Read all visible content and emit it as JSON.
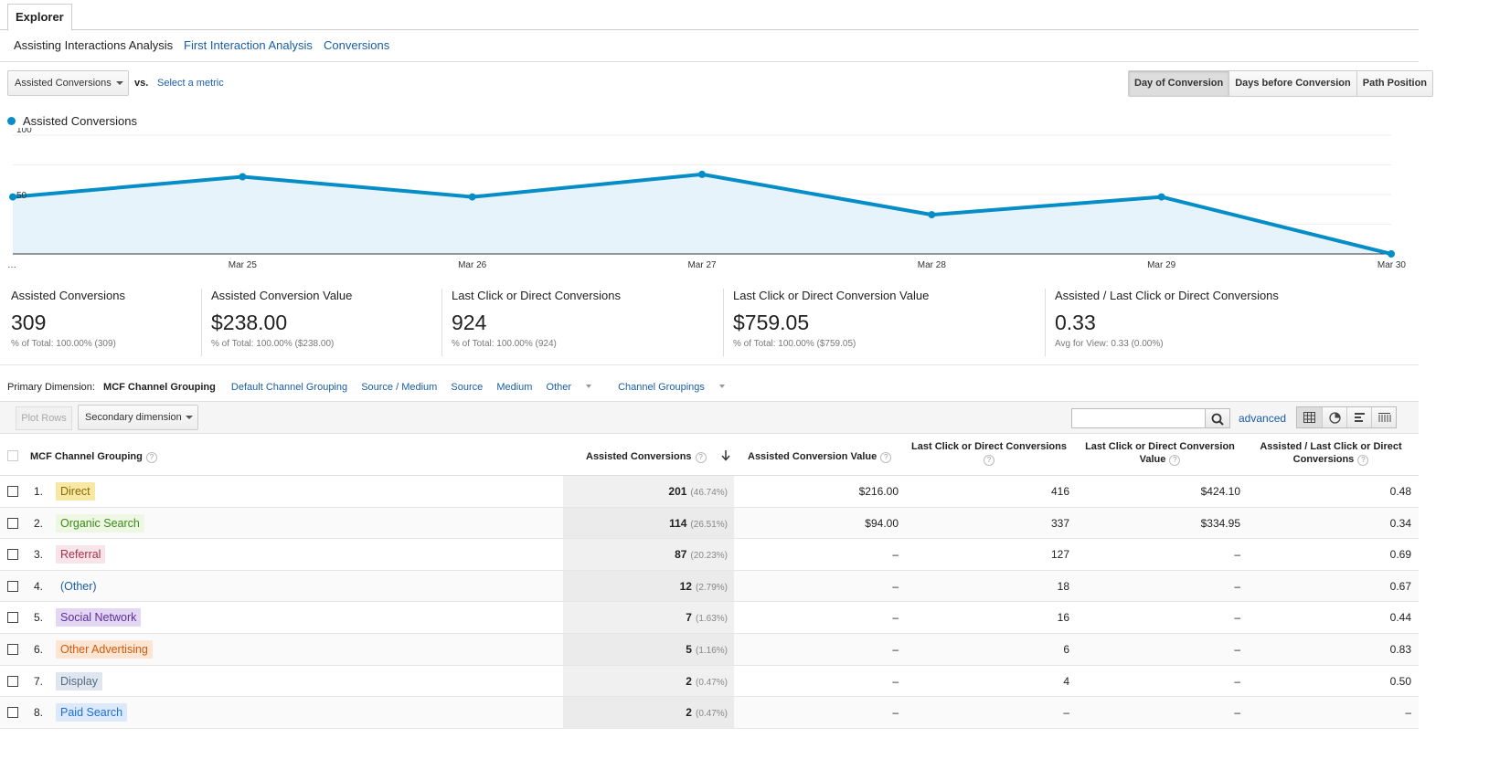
{
  "tabs": {
    "explorer": "Explorer"
  },
  "subtabs": {
    "assisting": "Assisting Interactions Analysis",
    "first": "First Interaction Analysis",
    "conversions": "Conversions"
  },
  "metric": {
    "selected": "Assisted Conversions",
    "vs": "vs.",
    "select_metric": "Select a metric"
  },
  "segments": {
    "day": "Day of Conversion",
    "days_before": "Days before Conversion",
    "path": "Path Position"
  },
  "legend": "Assisted Conversions",
  "chart_data": {
    "type": "area",
    "title": "",
    "series": [
      {
        "name": "Assisted Conversions",
        "values": [
          48,
          65,
          48,
          67,
          33,
          48,
          0
        ]
      }
    ],
    "x": [
      "…",
      "Mar 25",
      "Mar 26",
      "Mar 27",
      "Mar 28",
      "Mar 29",
      "Mar 30"
    ],
    "y_ticks": [
      "100",
      "50"
    ],
    "ylim": [
      0,
      100
    ],
    "color": "#058dc7",
    "fill": "#e6f3fa",
    "grid": true
  },
  "scorecards": [
    {
      "label": "Assisted Conversions",
      "value": "309",
      "sub": "% of Total: 100.00% (309)"
    },
    {
      "label": "Assisted Conversion Value",
      "value": "$238.00",
      "sub": "% of Total: 100.00% ($238.00)"
    },
    {
      "label": "Last Click or Direct Conversions",
      "value": "924",
      "sub": "% of Total: 100.00% (924)"
    },
    {
      "label": "Last Click or Direct Conversion Value",
      "value": "$759.05",
      "sub": "% of Total: 100.00% ($759.05)"
    },
    {
      "label": "Assisted / Last Click or Direct Conversions",
      "value": "0.33",
      "sub": "Avg for View: 0.33 (0.00%)"
    }
  ],
  "dimensions": {
    "label": "Primary Dimension:",
    "active": "MCF Channel Grouping",
    "default": "Default Channel Grouping",
    "source_medium": "Source / Medium",
    "source": "Source",
    "medium": "Medium",
    "other": "Other",
    "channel_groupings": "Channel Groupings"
  },
  "toolbar": {
    "plot_rows": "Plot Rows",
    "secondary": "Secondary dimension",
    "advanced": "advanced"
  },
  "table": {
    "headers": {
      "dimension": "MCF Channel Grouping",
      "assisted": "Assisted Conversions",
      "assisted_value": "Assisted Conversion Value",
      "last_click_line1": "Last Click or Direct Conversions",
      "last_value_line1": "Last Click or Direct Conversion",
      "last_value_line2": "Value",
      "ratio_line1": "Assisted / Last Click or Direct",
      "ratio_line2": "Conversions"
    },
    "rows": [
      {
        "idx": "1.",
        "name": "Direct",
        "bg": "#f7e8a6",
        "fg": "#8a6d00",
        "assisted": "201",
        "pct": "(46.74%)",
        "av": "$216.00",
        "lc": "416",
        "lv": "$424.10",
        "ratio": "0.48"
      },
      {
        "idx": "2.",
        "name": "Organic Search",
        "bg": "#eef7e4",
        "fg": "#3a8b17",
        "assisted": "114",
        "pct": "(26.51%)",
        "av": "$94.00",
        "lc": "337",
        "lv": "$334.95",
        "ratio": "0.34"
      },
      {
        "idx": "3.",
        "name": "Referral",
        "bg": "#f9e4ea",
        "fg": "#a0334f",
        "assisted": "87",
        "pct": "(20.23%)",
        "av": "–",
        "lc": "127",
        "lv": "–",
        "ratio": "0.69"
      },
      {
        "idx": "4.",
        "name": "(Other)",
        "bg": "transparent",
        "fg": "#1a5da6",
        "assisted": "12",
        "pct": "(2.79%)",
        "av": "–",
        "lc": "18",
        "lv": "–",
        "ratio": "0.67"
      },
      {
        "idx": "5.",
        "name": "Social Network",
        "bg": "#e4d7f4",
        "fg": "#5a2d99",
        "assisted": "7",
        "pct": "(1.63%)",
        "av": "–",
        "lc": "16",
        "lv": "–",
        "ratio": "0.44"
      },
      {
        "idx": "6.",
        "name": "Other Advertising",
        "bg": "#fde5d3",
        "fg": "#d25b0a",
        "assisted": "5",
        "pct": "(1.16%)",
        "av": "–",
        "lc": "6",
        "lv": "–",
        "ratio": "0.83"
      },
      {
        "idx": "7.",
        "name": "Display",
        "bg": "#dfe6ef",
        "fg": "#566a84",
        "assisted": "2",
        "pct": "(0.47%)",
        "av": "–",
        "lc": "4",
        "lv": "–",
        "ratio": "0.50"
      },
      {
        "idx": "8.",
        "name": "Paid Search",
        "bg": "#dbe9fa",
        "fg": "#1e6fd0",
        "assisted": "2",
        "pct": "(0.47%)",
        "av": "–",
        "lc": "–",
        "lv": "–",
        "ratio": "–"
      }
    ]
  }
}
